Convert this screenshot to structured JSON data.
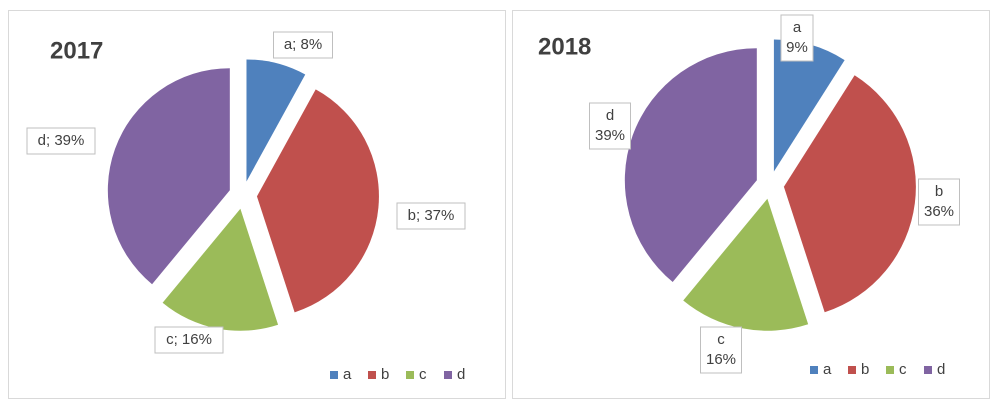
{
  "chart_data": [
    {
      "type": "pie",
      "title": "2017",
      "categories": [
        "a",
        "b",
        "c",
        "d"
      ],
      "colors": [
        "#4f81bd",
        "#c0504d",
        "#9bbb59",
        "#8064a2"
      ],
      "values": [
        8,
        37,
        16,
        39
      ],
      "value_labels": [
        "a; 8%",
        "b; 37%",
        "c; 16%",
        "d; 39%"
      ],
      "legend": "bottom-right"
    },
    {
      "type": "pie",
      "title": "2018",
      "categories": [
        "a",
        "b",
        "c",
        "d"
      ],
      "colors": [
        "#4f81bd",
        "#c0504d",
        "#9bbb59",
        "#8064a2"
      ],
      "values": [
        9,
        36,
        16,
        39
      ],
      "value_labels": [
        "a\n9%",
        "b\n36%",
        "c\n16%",
        "d\n39%"
      ],
      "legend": "bottom-right"
    }
  ]
}
